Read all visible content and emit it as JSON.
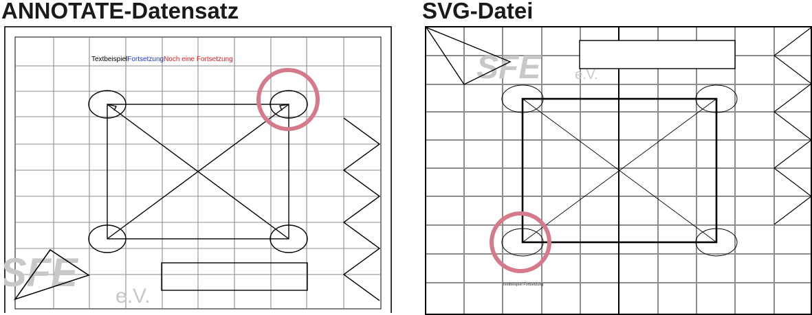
{
  "left": {
    "heading": "ANNOTATE-Datensatz",
    "text_parts": [
      {
        "text": "Textbeispiel",
        "color": "#000000"
      },
      {
        "text": "Fortsetzung",
        "color": "#1a3be0"
      },
      {
        "text": "Noch eine Fortsetzung",
        "color": "#e01a1a"
      }
    ],
    "logo": {
      "letters": "SFE",
      "suffix": "e.V."
    }
  },
  "right": {
    "heading": "SVG-Datei",
    "tiny_text": "Textbeispiel Fortsetzung",
    "logo": {
      "letters": "SFE",
      "suffix": "e.V."
    }
  },
  "colors": {
    "grid": "#8c8c8c",
    "highlight": "#d47a8a",
    "logo": "#c8c8c8",
    "logo_accent": "#2a7fd4"
  }
}
